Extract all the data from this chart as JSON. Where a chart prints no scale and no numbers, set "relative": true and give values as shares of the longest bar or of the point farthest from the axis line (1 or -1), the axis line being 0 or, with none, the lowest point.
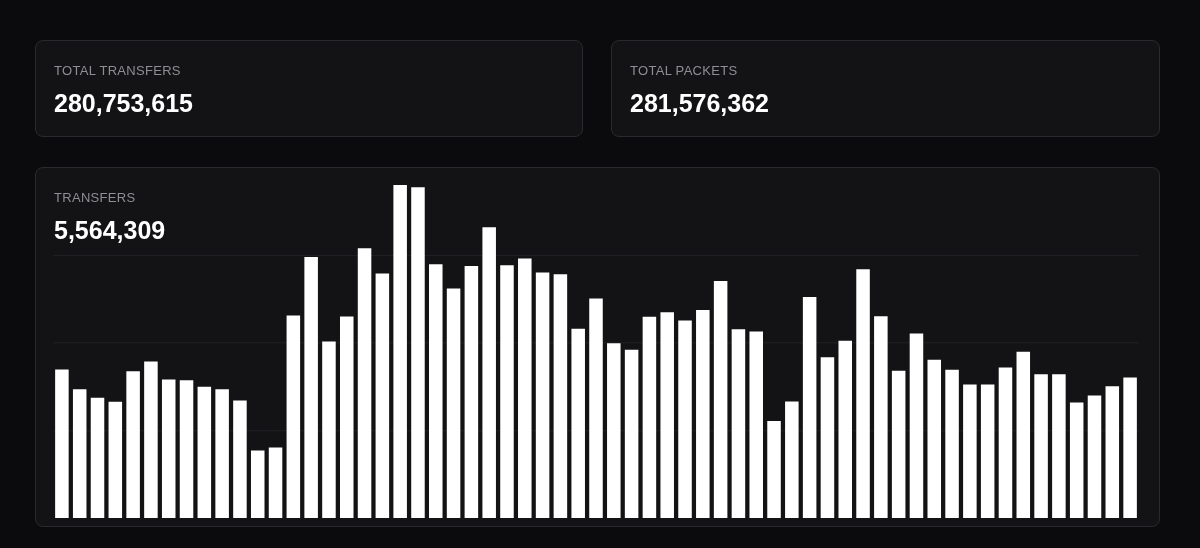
{
  "chart_data": [
    {
      "type": "other",
      "title": "TOTAL TRANSFERS",
      "subtitle": "280,753,615"
    },
    {
      "type": "other",
      "title": "TOTAL PACKETS",
      "subtitle": "281,576,362"
    },
    {
      "type": "bar",
      "title": "TRANSFERS",
      "subtitle": "5,564,309",
      "relative": true,
      "color": "#ffffff",
      "ref_lines": [
        {
          "axis": "y",
          "value": 0.262,
          "color": "#222226"
        },
        {
          "axis": "y",
          "value": 0.526,
          "color": "#222226"
        },
        {
          "axis": "y",
          "value": 0.788,
          "color": "#222226"
        }
      ],
      "categories": [
        null,
        null,
        null,
        null,
        null,
        null,
        null,
        null,
        null,
        null,
        null,
        null,
        null,
        null,
        null,
        null,
        null,
        null,
        null,
        null,
        null,
        null,
        null,
        null,
        null,
        null,
        null,
        null,
        null,
        null,
        null,
        null,
        null,
        null,
        null,
        null,
        null,
        null,
        null,
        null,
        null,
        null,
        null,
        null,
        null,
        null,
        null,
        null,
        null,
        null,
        null,
        null,
        null,
        null,
        null,
        null,
        null,
        null,
        null,
        null,
        null
      ],
      "values": [
        0.446,
        0.387,
        0.361,
        0.349,
        0.441,
        0.47,
        0.416,
        0.414,
        0.394,
        0.387,
        0.353,
        0.203,
        0.212,
        0.608,
        0.784,
        0.53,
        0.605,
        0.81,
        0.734,
        1.0,
        0.993,
        0.762,
        0.689,
        0.757,
        0.873,
        0.759,
        0.779,
        0.737,
        0.732,
        0.568,
        0.659,
        0.525,
        0.505,
        0.604,
        0.618,
        0.593,
        0.625,
        0.712,
        0.567,
        0.56,
        0.291,
        0.35,
        0.664,
        0.483,
        0.532,
        0.747,
        0.606,
        0.442,
        0.554,
        0.475,
        0.445,
        0.401,
        0.401,
        0.452,
        0.499,
        0.432,
        0.432,
        0.347,
        0.368,
        0.396,
        0.422
      ]
    }
  ]
}
